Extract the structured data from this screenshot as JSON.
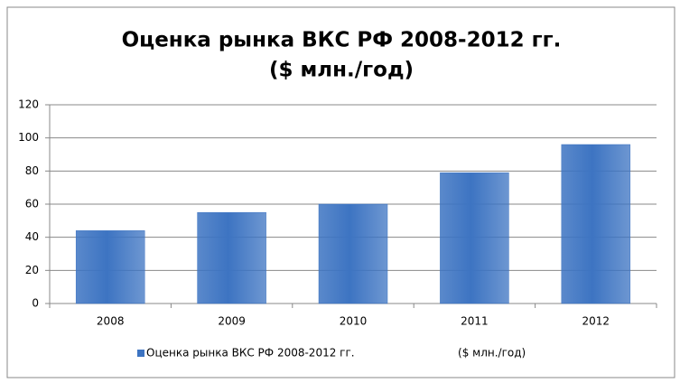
{
  "chart_data": {
    "type": "bar",
    "title": "Оценка рынка ВКС РФ 2008-2012 гг.",
    "subtitle": "($ млн./год)",
    "categories": [
      "2008",
      "2009",
      "2010",
      "2011",
      "2012"
    ],
    "series": [
      {
        "name": "Оценка рынка ВКС РФ 2008-2012 гг.                              ($ млн./год)",
        "color": "#3d74c2",
        "values": [
          44,
          55,
          60,
          79,
          96
        ]
      }
    ],
    "ylim": [
      0,
      120
    ],
    "yticks": [
      0,
      20,
      40,
      60,
      80,
      100,
      120
    ],
    "grid": true,
    "legend": "bottom"
  }
}
